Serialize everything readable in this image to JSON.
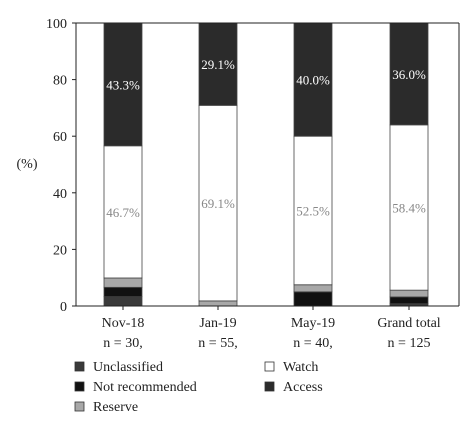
{
  "chart_data": {
    "type": "bar",
    "stacked": true,
    "ylabel": "(%)",
    "ylim": [
      0,
      100
    ],
    "yticks": [
      0,
      20,
      40,
      60,
      80,
      100
    ],
    "categories": [
      "Nov-18",
      "Jan-19",
      "May-19",
      "Grand total"
    ],
    "category_sublabels": [
      "n = 30,",
      "n = 55,",
      "n = 40,",
      "n = 125"
    ],
    "series": [
      {
        "name": "Unclassified",
        "color": "#3a3a3a",
        "values": [
          3.3,
          0,
          0,
          0.8
        ]
      },
      {
        "name": "Not recommended",
        "color": "#111111",
        "values": [
          3.3,
          0,
          5.0,
          2.4
        ]
      },
      {
        "name": "Reserve",
        "color": "#a8a8a8",
        "values": [
          3.3,
          1.8,
          2.5,
          2.4
        ]
      },
      {
        "name": "Watch",
        "color": "#ffffff",
        "values": [
          46.7,
          69.1,
          52.5,
          58.4
        ]
      },
      {
        "name": "Access",
        "color": "#2b2b2b",
        "values": [
          43.3,
          29.1,
          40.0,
          36.0
        ]
      }
    ],
    "data_labels": [
      {
        "series": "Watch",
        "texts": [
          "46.7%",
          "69.1%",
          "52.5%",
          "58.4%"
        ],
        "color": "#888888"
      },
      {
        "series": "Access",
        "texts": [
          "43.3%",
          "29.1%",
          "40.0%",
          "36.0%"
        ],
        "color": "#ffffff"
      }
    ],
    "legend": {
      "placement": "bottom",
      "items": [
        "Unclassified",
        "Watch",
        "Not recommended",
        "Access",
        "Reserve"
      ]
    },
    "grid": false
  }
}
